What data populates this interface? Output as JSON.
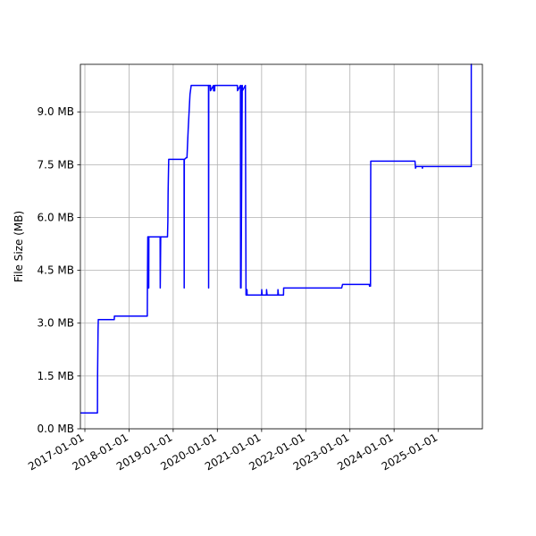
{
  "chart_data": {
    "type": "line",
    "title": "",
    "xlabel": "",
    "ylabel": "File Size (MB)",
    "x_tick_labels": [
      "2017-01-01",
      "2018-01-01",
      "2019-01-01",
      "2020-01-01",
      "2021-01-01",
      "2022-01-01",
      "2023-01-01",
      "2024-01-01",
      "2025-01-01"
    ],
    "y_tick_labels": [
      "0.0 MB",
      "1.5 MB",
      "3.0 MB",
      "4.5 MB",
      "6.0 MB",
      "7.5 MB",
      "9.0 MB"
    ],
    "x_ticks": [
      "2017-01-01",
      "2018-01-01",
      "2019-01-01",
      "2020-01-01",
      "2021-01-01",
      "2022-01-01",
      "2023-01-01",
      "2024-01-01",
      "2025-01-01"
    ],
    "y_ticks": [
      0,
      1.5,
      3.0,
      4.5,
      6.0,
      7.5,
      9.0
    ],
    "xlim": [
      "2016-11-25",
      "2025-12-31"
    ],
    "ylim": [
      0,
      10.35
    ],
    "grid": true,
    "color": "#0000ff",
    "series": [
      {
        "x": [
          "2016-11-25",
          "2017-04-15",
          "2017-04-16",
          "2017-04-20",
          "2017-04-22",
          "2017-09-01",
          "2017-09-02",
          "2018-06-01",
          "2018-06-02",
          "2018-06-05",
          "2018-06-06",
          "2018-06-08",
          "2018-06-09",
          "2018-06-10",
          "2018-06-11",
          "2018-06-12",
          "2018-06-13",
          "2018-06-14",
          "2018-06-20",
          "2018-06-25",
          "2018-06-26",
          "2018-09-15",
          "2018-09-16",
          "2018-09-20",
          "2018-11-15",
          "2018-11-18",
          "2018-11-20",
          "2018-11-22",
          "2018-11-25",
          "2018-11-28",
          "2018-12-01",
          "2019-04-01",
          "2019-04-02",
          "2019-04-03",
          "2019-04-04",
          "2019-04-20",
          "2019-04-25",
          "2019-05-05",
          "2019-05-20",
          "2019-05-30",
          "2019-06-10",
          "2019-10-20",
          "2019-10-21",
          "2019-10-22",
          "2019-10-23",
          "2019-10-24",
          "2019-11-05",
          "2019-11-06",
          "2019-11-30",
          "2019-12-01",
          "2019-12-10",
          "2019-12-11",
          "2020-06-15",
          "2020-06-16",
          "2020-07-10",
          "2020-07-11",
          "2020-07-14",
          "2020-07-15",
          "2020-07-25",
          "2020-07-26",
          "2020-08-20",
          "2020-08-21",
          "2020-08-25",
          "2020-08-26",
          "2020-09-01",
          "2020-09-02",
          "2020-09-03",
          "2020-09-04",
          "2020-09-05",
          "2021-01-01",
          "2021-01-02",
          "2021-01-05",
          "2021-01-06",
          "2021-02-10",
          "2021-02-11",
          "2021-02-15",
          "2021-02-16",
          "2021-05-15",
          "2021-05-16",
          "2021-05-20",
          "2021-05-21",
          "2021-07-01",
          "2021-07-02",
          "2022-10-15",
          "2022-10-25",
          "2022-11-01",
          "2023-06-10",
          "2023-06-12",
          "2023-06-15",
          "2023-06-20",
          "2023-06-22",
          "2024-06-15",
          "2024-06-22",
          "2024-06-26",
          "2024-07-01",
          "2024-08-20",
          "2024-08-22",
          "2024-08-24",
          "2025-09-30",
          "2025-09-30",
          "2025-10-05"
        ],
        "y": [
          0.45,
          0.45,
          1.5,
          2.8,
          3.1,
          3.1,
          3.2,
          3.2,
          4.0,
          5.45,
          4.0,
          5.45,
          4.0,
          5.45,
          4.0,
          5.45,
          4.0,
          5.45,
          5.45,
          5.45,
          5.45,
          5.45,
          4.0,
          5.45,
          5.45,
          5.9,
          6.7,
          7.1,
          7.65,
          7.65,
          7.65,
          7.65,
          4.0,
          7.65,
          7.65,
          7.7,
          7.7,
          8.5,
          9.5,
          9.75,
          9.75,
          9.75,
          4.0,
          9.75,
          9.6,
          9.75,
          9.75,
          9.6,
          9.75,
          9.6,
          9.6,
          9.75,
          9.75,
          9.6,
          9.75,
          4.0,
          9.75,
          4.0,
          9.75,
          9.6,
          9.75,
          8.3,
          3.8,
          3.8,
          3.8,
          3.95,
          3.8,
          3.8,
          3.8,
          3.8,
          3.95,
          3.8,
          3.8,
          3.8,
          3.95,
          3.8,
          3.8,
          3.8,
          3.95,
          3.8,
          3.8,
          3.8,
          4.0,
          4.0,
          4.0,
          4.1,
          4.1,
          4.05,
          4.1,
          4.05,
          7.6,
          7.6,
          7.6,
          7.4,
          7.45,
          7.45,
          7.4,
          7.45,
          7.45,
          10.35,
          10.35
        ]
      }
    ]
  }
}
